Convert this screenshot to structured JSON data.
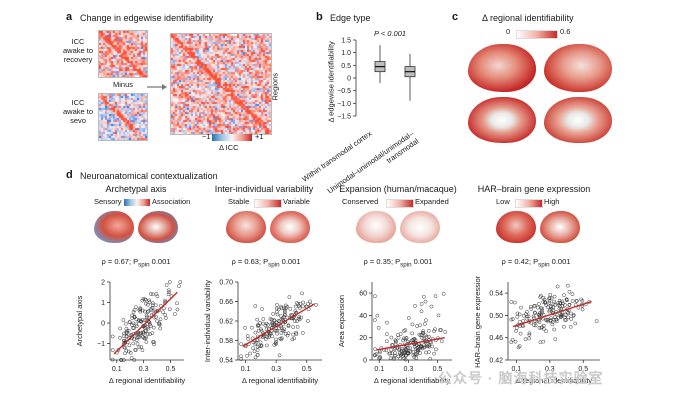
{
  "panel_a": {
    "label": "a",
    "title": "Change in edgewise identifiability",
    "matrix1_label": "ICC\nawake to\nrecovery",
    "matrix2_label": "ICC\nawake to\nsevo",
    "minus_label": "Minus",
    "regions_label": "Regions",
    "colorbar": {
      "min": "−1",
      "max": "+1",
      "label": "Δ ICC"
    }
  },
  "panel_b": {
    "label": "b",
    "title": "Edge type",
    "p_value": "P < 0.001",
    "ylabel": "Δ edgewise identifiability",
    "yticks": [
      "1.5",
      "1.0",
      "0.5",
      "0",
      "−0.5",
      "−1.0",
      "−1.5"
    ],
    "categories": [
      "Within transmodal cortex",
      "Unimodal–unimodal/unimodal–transmodal"
    ]
  },
  "panel_c": {
    "label": "c",
    "title": "Δ regional identifiability",
    "colorbar": {
      "min": "0",
      "max": "0.6"
    }
  },
  "panel_d": {
    "label": "d",
    "title": "Neuroanatomical contextualization",
    "columns": [
      {
        "title": "Archetypal axis",
        "legend_left": "Sensory",
        "legend_right": "Association",
        "stat": "ρ = 0.67; P",
        "stat_sub": "spin",
        "stat_end": " 0.001",
        "ylabel": "Archetypal axis",
        "yticks": [
          "2",
          "1",
          "0",
          "−1"
        ],
        "xticks": [
          "0.1",
          "0.3",
          "0.5"
        ],
        "xlabel": "Δ regional identifiability"
      },
      {
        "title": "Inter-individual variability",
        "legend_left": "Stable",
        "legend_right": "Variable",
        "stat": "ρ = 0.63; P",
        "stat_sub": "spin",
        "stat_end": " 0.001",
        "ylabel": "Inter-individual variability",
        "yticks": [
          "0.70",
          "0.66",
          "0.62",
          "0.58",
          "0.54"
        ],
        "xticks": [
          "0.1",
          "0.3",
          "0.5"
        ],
        "xlabel": "Δ regional identifiability"
      },
      {
        "title": "Expansion (human/macaque)",
        "legend_left": "Conserved",
        "legend_right": "Expanded",
        "stat": "ρ = 0.35; P",
        "stat_sub": "spin",
        "stat_end": " 0.001",
        "ylabel": "Area expansion",
        "yticks": [
          "60",
          "40",
          "20",
          "0"
        ],
        "xticks": [
          "0.1",
          "0.3",
          "0.5"
        ],
        "xlabel": "Δ regional identifiability"
      },
      {
        "title": "HAR–brain gene expression",
        "legend_left": "Low",
        "legend_right": "High",
        "stat": "ρ = 0.42; P",
        "stat_sub": "spin",
        "stat_end": " 0.001",
        "ylabel": "HAR–brain gene expression",
        "yticks": [
          "0.54",
          "0.50",
          "0.46",
          "0.42"
        ],
        "xticks": [
          "0.1",
          "0.3",
          "0.5"
        ],
        "xlabel": "Δ regional identifiability"
      }
    ]
  },
  "watermark": "公众号 · 脑海科技实验室",
  "chart_data": [
    {
      "type": "box",
      "title": "Edge type",
      "categories": [
        "Within transmodal cortex",
        "Unimodal–unimodal/unimodal–transmodal"
      ],
      "boxes": [
        {
          "min": -0.2,
          "q1": 0.25,
          "median": 0.45,
          "q3": 0.65,
          "max": 1.3
        },
        {
          "min": -0.9,
          "q1": 0.05,
          "median": 0.25,
          "q3": 0.45,
          "max": 0.95
        }
      ],
      "ylabel": "Δ edgewise identifiability",
      "ylim": [
        -1.5,
        1.5
      ]
    },
    {
      "type": "scatter",
      "title": "Archetypal axis",
      "xlim": [
        0.05,
        0.6
      ],
      "ylim": [
        -1.8,
        2.0
      ],
      "fit": [
        [
          0.08,
          -1.5
        ],
        [
          0.55,
          1.5
        ]
      ],
      "cx": 0.3,
      "cy": 0.0,
      "slope": 6.0,
      "noise": 0.6,
      "n": 180
    },
    {
      "type": "scatter",
      "title": "Inter-individual variability",
      "xlim": [
        0.05,
        0.6
      ],
      "ylim": [
        0.54,
        0.7
      ],
      "fit": [
        [
          0.08,
          0.568
        ],
        [
          0.55,
          0.655
        ]
      ],
      "cx": 0.3,
      "cy": 0.61,
      "slope": 0.19,
      "noise": 0.022,
      "n": 180
    },
    {
      "type": "scatter",
      "title": "Area expansion",
      "xlim": [
        0.05,
        0.6
      ],
      "ylim": [
        0,
        70
      ],
      "fit": [
        [
          0.08,
          9
        ],
        [
          0.55,
          20
        ]
      ],
      "cx": 0.3,
      "cy": 14,
      "slope": 24,
      "noise": 8,
      "n": 180
    },
    {
      "type": "scatter",
      "title": "HAR–brain gene expression",
      "xlim": [
        0.05,
        0.6
      ],
      "ylim": [
        0.42,
        0.56
      ],
      "fit": [
        [
          0.08,
          0.48
        ],
        [
          0.55,
          0.525
        ]
      ],
      "cx": 0.3,
      "cy": 0.505,
      "slope": 0.1,
      "noise": 0.02,
      "n": 180
    }
  ],
  "colors": {
    "red": "#c62828",
    "blue": "#2c6fb4",
    "grey": "#9e9e9e"
  }
}
